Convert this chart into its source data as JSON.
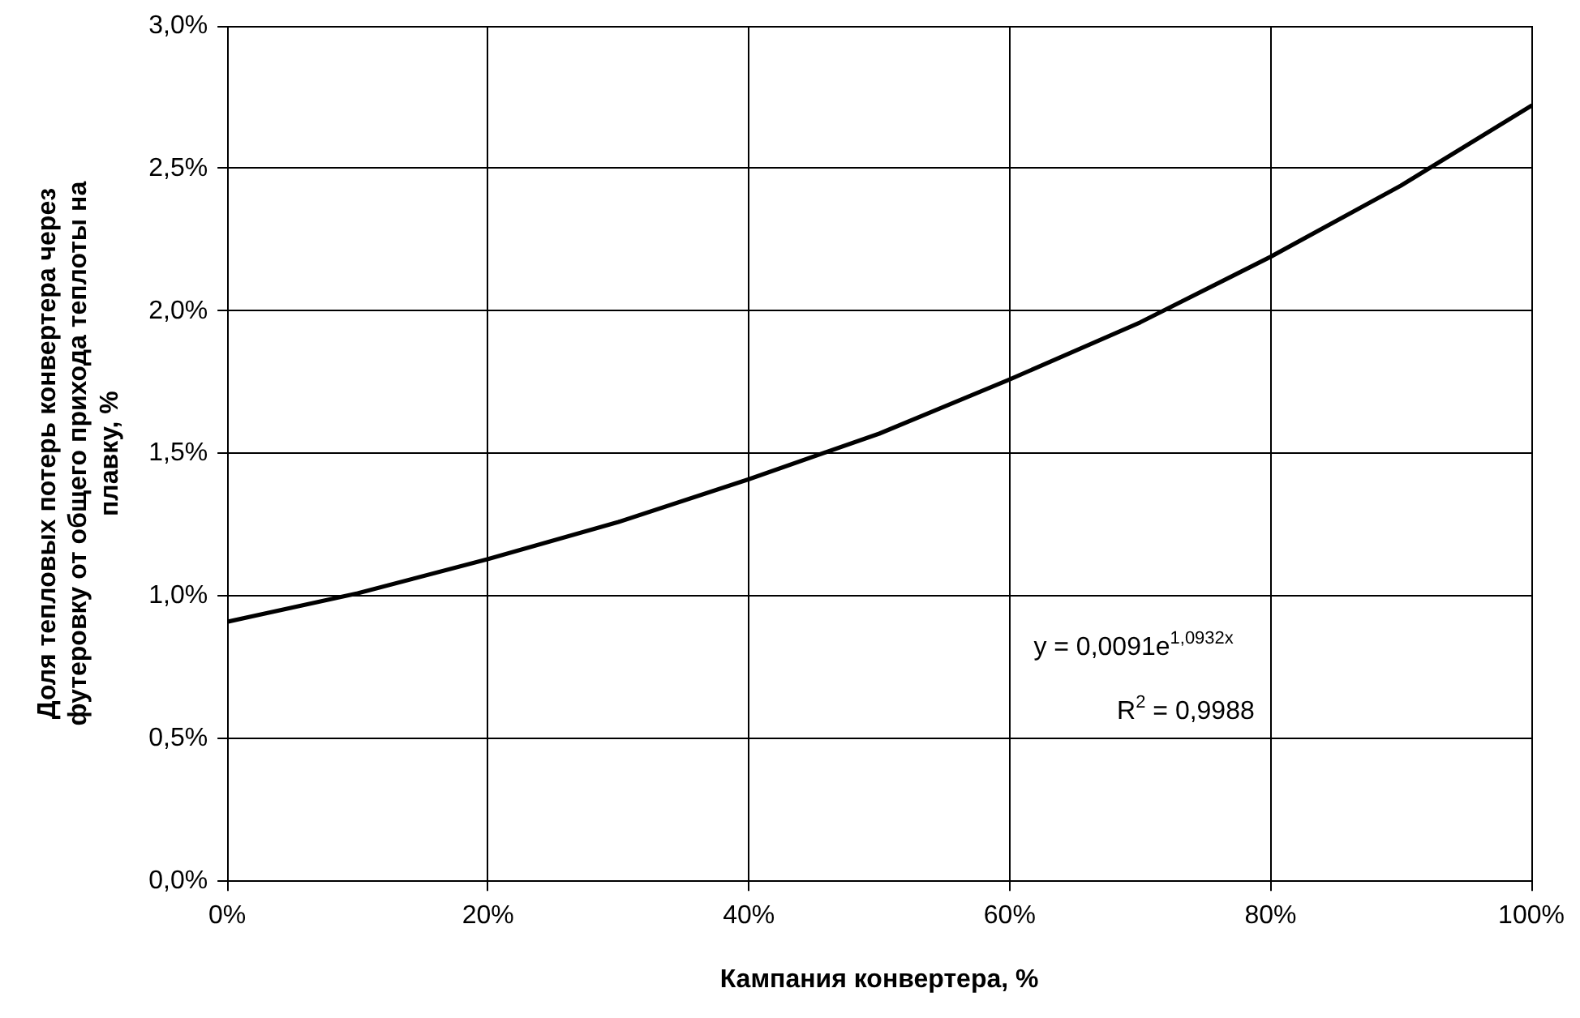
{
  "chart_data": {
    "type": "line",
    "xlabel": "Кампания конвертера, %",
    "ylabel": "Доля тепловых потерь конвертера через футеровку от общего прихода теплоты на плавку, %",
    "x": [
      0,
      10,
      20,
      30,
      40,
      50,
      60,
      70,
      80,
      90,
      100
    ],
    "series": [
      {
        "color": "#000000",
        "values": [
          0.91,
          1.01,
          1.13,
          1.26,
          1.41,
          1.57,
          1.76,
          1.96,
          2.19,
          2.44,
          2.72
        ]
      }
    ],
    "xlim": [
      0,
      100
    ],
    "xticks": [
      {
        "value": 0,
        "label": "0%"
      },
      {
        "value": 20,
        "label": "20%"
      },
      {
        "value": 40,
        "label": "40%"
      },
      {
        "value": 60,
        "label": "60%"
      },
      {
        "value": 80,
        "label": "80%"
      },
      {
        "value": 100,
        "label": "100%"
      }
    ],
    "ylim": [
      0,
      3
    ],
    "yticks": [
      {
        "value": 0,
        "label": "0,0%"
      },
      {
        "value": 0.5,
        "label": "0,5%"
      },
      {
        "value": 1,
        "label": "1,0%"
      },
      {
        "value": 1.5,
        "label": "1,5%"
      },
      {
        "value": 2,
        "label": "2,0%"
      },
      {
        "value": 2.5,
        "label": "2,5%"
      },
      {
        "value": 3,
        "label": "3,0%"
      }
    ],
    "grid": true,
    "legend": false,
    "marker": "none",
    "line_style": "solid",
    "annotations": [
      "y = 0,0091e$^{1,0932x}$",
      "R$^{2}$ = 0,9988"
    ]
  }
}
